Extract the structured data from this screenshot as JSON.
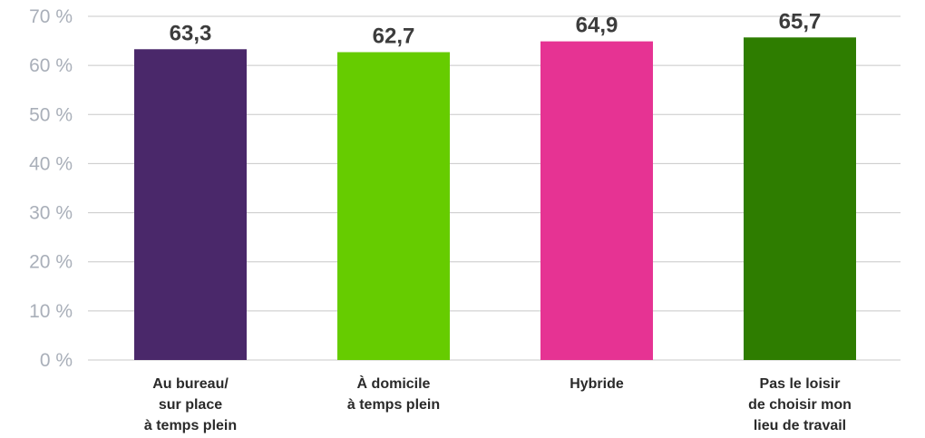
{
  "chart_data": {
    "type": "bar",
    "categories": [
      [
        "Au bureau/",
        "sur place",
        "à temps plein"
      ],
      [
        "À domicile",
        "à temps plein"
      ],
      [
        "Hybride"
      ],
      [
        "Pas le loisir",
        "de choisir mon",
        "lieu de travail"
      ]
    ],
    "values": [
      63.3,
      62.7,
      64.9,
      65.7
    ],
    "value_labels": [
      "63,3",
      "62,7",
      "64,9",
      "65,7"
    ],
    "colors": [
      "#4a286a",
      "#66cc00",
      "#e63393",
      "#2e7d00"
    ],
    "ylim": [
      0,
      70
    ],
    "y_ticks": [
      0,
      10,
      20,
      30,
      40,
      50,
      60,
      70
    ],
    "y_tick_labels": [
      "0 %",
      "10 %",
      "20 %",
      "30 %",
      "40 %",
      "50 %",
      "60 %",
      "70 %"
    ],
    "grid": true,
    "title": "",
    "xlabel": "",
    "ylabel": ""
  }
}
